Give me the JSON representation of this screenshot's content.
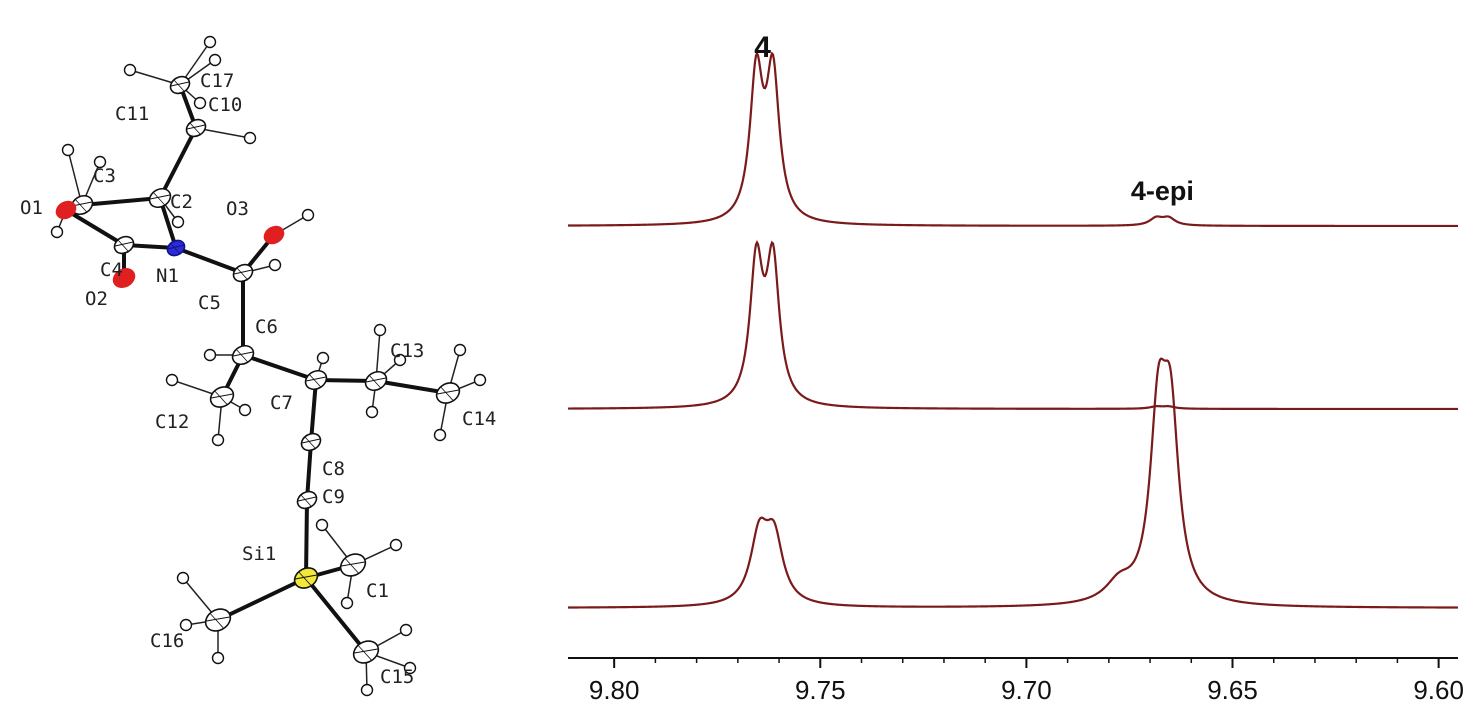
{
  "molecule": {
    "atom_labels": {
      "C17": "C17",
      "C10": "C10",
      "C11": "C11",
      "C3": "C3",
      "C2": "C2",
      "O1": "O1",
      "O3": "O3",
      "C4": "C4",
      "N1": "N1",
      "O2": "O2",
      "C5": "C5",
      "C6": "C6",
      "C13": "C13",
      "C7": "C7",
      "C12": "C12",
      "C14": "C14",
      "C8": "C8",
      "C9": "C9",
      "Si1": "Si1",
      "C1": "C1",
      "C16": "C16",
      "C15": "C15"
    },
    "colors": {
      "carbon": "#ffffff",
      "hydrogen": "#ffffff",
      "nitrogen": "#2c2cd6",
      "oxygen": "#e02020",
      "silicon": "#f2e83a",
      "bond": "#111111"
    }
  },
  "chart_data": {
    "type": "line",
    "title": "",
    "xlabel": "",
    "ylabel": "",
    "xlim": [
      9.8,
      9.6
    ],
    "x_reversed": true,
    "x_ticks": [
      9.8,
      9.75,
      9.7,
      9.65,
      9.6
    ],
    "x_tick_labels": [
      "9.80",
      "9.75",
      "9.70",
      "9.65",
      "9.60"
    ],
    "line_color": "#7a1a1a",
    "grid": false,
    "annotations": [
      {
        "text": "4",
        "x": 9.764
      },
      {
        "text": "4-epi",
        "x": 9.667
      }
    ],
    "series": [
      {
        "peaks": [
          {
            "x": 9.7655,
            "height": 1.0,
            "width": 0.0019
          },
          {
            "x": 9.7615,
            "height": 1.0,
            "width": 0.0019
          },
          {
            "x": 9.6685,
            "height": 0.05,
            "width": 0.0019
          },
          {
            "x": 9.6655,
            "height": 0.05,
            "width": 0.0019
          }
        ]
      },
      {
        "peaks": [
          {
            "x": 9.7655,
            "height": 1.0,
            "width": 0.0019
          },
          {
            "x": 9.7615,
            "height": 1.0,
            "width": 0.0019
          },
          {
            "x": 9.6685,
            "height": 0.015,
            "width": 0.0019
          },
          {
            "x": 9.6655,
            "height": 0.015,
            "width": 0.0019
          }
        ]
      },
      {
        "peaks": [
          {
            "x": 9.7648,
            "height": 0.48,
            "width": 0.0026
          },
          {
            "x": 9.7612,
            "height": 0.46,
            "width": 0.0026
          },
          {
            "x": 9.668,
            "height": 1.25,
            "width": 0.0024
          },
          {
            "x": 9.665,
            "height": 1.22,
            "width": 0.0024
          },
          {
            "x": 9.6775,
            "height": 0.14,
            "width": 0.004
          }
        ]
      }
    ]
  }
}
